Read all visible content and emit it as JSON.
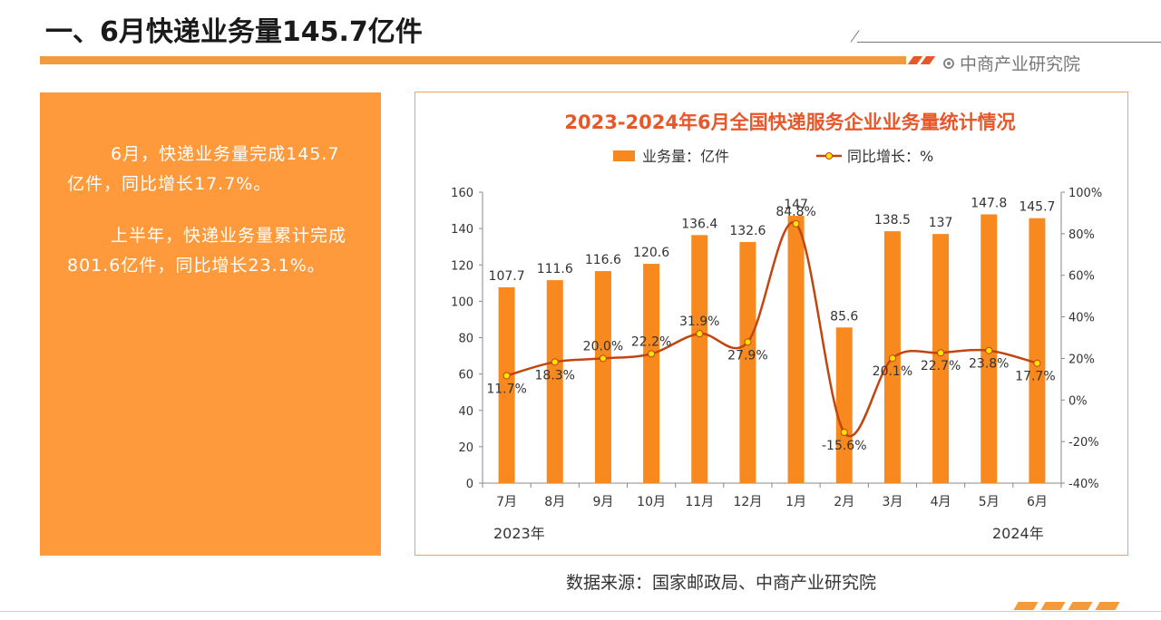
{
  "header": {
    "title": "一、6月快递业务量145.7亿件",
    "brand": "中商产业研究院"
  },
  "side_panel": {
    "paragraphs": [
      "6月，快递业务量完成145.7亿件，同比增长17.7%。",
      "上半年，快递业务量累计完成801.6亿件，同比增长23.1%。"
    ]
  },
  "source": "数据来源：国家邮政局、中商产业研究院",
  "colors": {
    "bar": "#f7891f",
    "line": "#c24510",
    "marker": "#ffe600",
    "accent": "#f39a3b",
    "panel": "#ff9a3c",
    "title": "#e8572a"
  },
  "chart_data": {
    "type": "bar",
    "title": "2023-2024年6月全国快递服务企业业务量统计情况",
    "categories": [
      "7月",
      "8月",
      "9月",
      "10月",
      "11月",
      "12月",
      "1月",
      "2月",
      "3月",
      "4月",
      "5月",
      "6月"
    ],
    "year_labels": [
      "2023年",
      "2024年"
    ],
    "series": [
      {
        "name": "业务量：亿件",
        "type": "bar",
        "axis": "left",
        "values": [
          107.7,
          111.6,
          116.6,
          120.6,
          136.4,
          132.6,
          147,
          85.6,
          138.5,
          137,
          147.8,
          145.7
        ],
        "labels": [
          "107.7",
          "111.6",
          "116.6",
          "120.6",
          "136.4",
          "132.6",
          "147",
          "85.6",
          "138.5",
          "137",
          "147.8",
          "145.7"
        ]
      },
      {
        "name": "同比增长：%",
        "type": "line",
        "axis": "right",
        "values": [
          11.7,
          18.3,
          20.0,
          22.2,
          31.9,
          27.9,
          84.8,
          -15.6,
          20.1,
          22.7,
          23.8,
          17.7
        ],
        "labels": [
          "11.7%",
          "18.3%",
          "20.0%",
          "22.2%",
          "31.9%",
          "27.9%",
          "84.8%",
          "-15.6%",
          "20.1%",
          "22.7%",
          "23.8%",
          "17.7%"
        ]
      }
    ],
    "y_left": {
      "min": 0,
      "max": 160,
      "ticks": [
        "0",
        "20",
        "40",
        "60",
        "80",
        "100",
        "120",
        "140",
        "160"
      ]
    },
    "y_right": {
      "min": -40,
      "max": 100,
      "ticks": [
        "-40%",
        "-20%",
        "0%",
        "20%",
        "40%",
        "60%",
        "80%",
        "100%"
      ]
    },
    "legend_position": "top-center",
    "grid": false
  }
}
